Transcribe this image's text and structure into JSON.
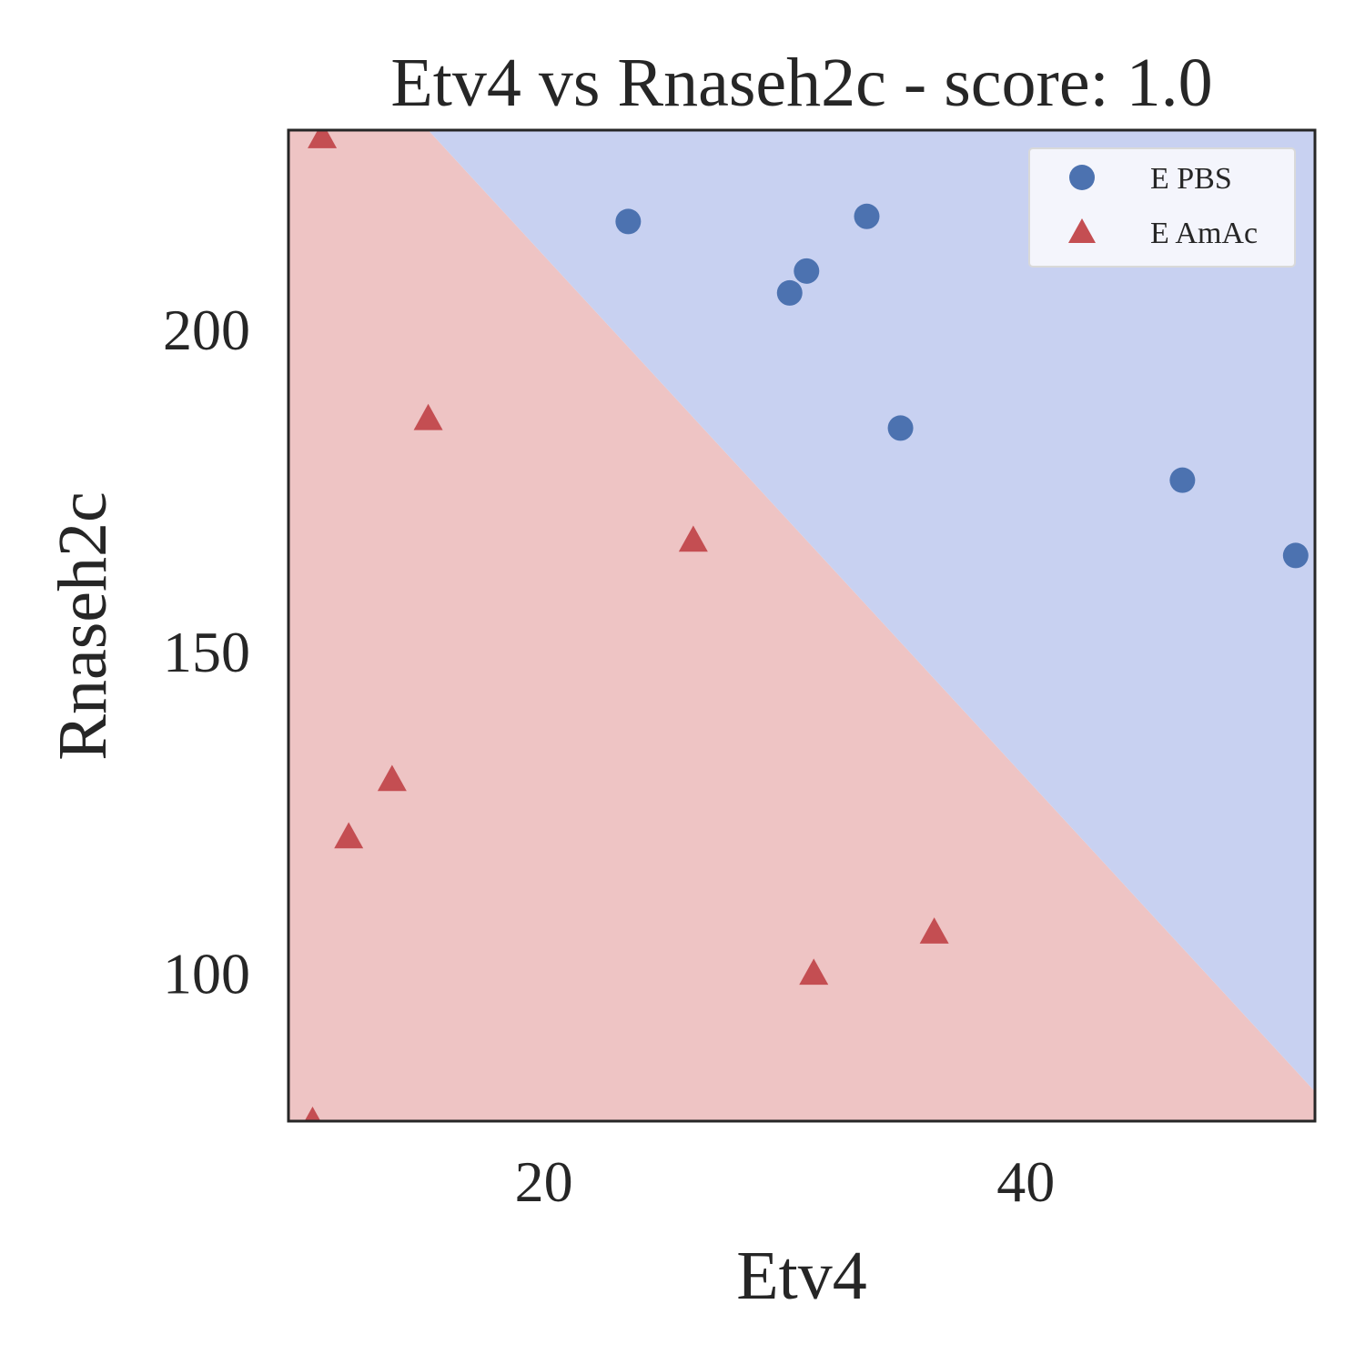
{
  "chart_data": {
    "type": "scatter",
    "title": "Etv4 vs Rnaseh2c - score: 1.0",
    "xlabel": "Etv4",
    "ylabel": "Rnaseh2c",
    "xlim": [
      9.4,
      52.0
    ],
    "ylim": [
      77.0,
      231.0
    ],
    "xticks": [
      20,
      40
    ],
    "yticks": [
      100,
      150,
      200
    ],
    "grid": false,
    "legend_position": "top-right",
    "decision_boundary": {
      "points": [
        [
          15.2,
          231.0
        ],
        [
          52.0,
          81.6
        ]
      ],
      "regions": [
        {
          "class": "E PBS",
          "side": "upper-right",
          "color": "#c8d1f1"
        },
        {
          "class": "E AmAc",
          "side": "lower-left",
          "color": "#eec4c4"
        }
      ]
    },
    "series": [
      {
        "name": "E PBS",
        "marker": "circle",
        "color": "#4c72b0",
        "points": [
          [
            23.5,
            216.8
          ],
          [
            30.2,
            205.7
          ],
          [
            30.9,
            209.1
          ],
          [
            33.4,
            217.6
          ],
          [
            34.8,
            184.7
          ],
          [
            46.5,
            176.6
          ],
          [
            51.2,
            164.9
          ]
        ]
      },
      {
        "name": "E AmAc",
        "marker": "triangle",
        "color": "#c44e52",
        "points": [
          [
            10.8,
            230.0
          ],
          [
            15.2,
            186.2
          ],
          [
            11.9,
            121.2
          ],
          [
            13.7,
            130.1
          ],
          [
            26.2,
            167.3
          ],
          [
            31.2,
            100.0
          ],
          [
            36.2,
            106.4
          ],
          [
            10.4,
            77.0
          ]
        ]
      }
    ]
  }
}
